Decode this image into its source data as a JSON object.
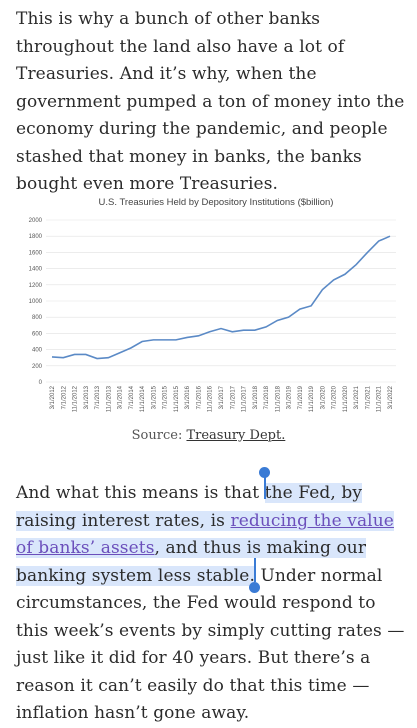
{
  "article": {
    "paragraph1": "This is why a bunch of other banks throughout the land also have a lot of Treasuries. And it’s why, when the government pumped a ton of money into the economy during the pandemic, and people stashed that money in banks, the banks bought even more Treasuries.",
    "source_prefix": "Source: ",
    "source_link": "Treasury Dept.",
    "p2_pre": "And what this means is that ",
    "p2_hl1": "the Fed, by raising interest rates, is ",
    "p2_link": "reducing the value of banks’ assets",
    "p2_hl2": ", and thus is making our banking system less stable",
    "p2_dot": ".",
    "p2_rest": " Under normal circumstances, the Fed would respond to this week’s events by simply cutting rates — just like it did for 40 years. But there’s a reason it can’t easily do that this time — inflation hasn’t gone away."
  },
  "colors": {
    "line": "#5b8ac6",
    "selection": "#d9e6fb",
    "link": "#6b4fbb",
    "handle": "#3a7bd5"
  },
  "chart_data": {
    "type": "line",
    "title": "U.S. Treasuries Held by Depository Institutions ($billion)",
    "ylim": [
      0,
      2000
    ],
    "yticks": [
      0,
      200,
      400,
      600,
      800,
      1000,
      1200,
      1400,
      1600,
      1800,
      2000
    ],
    "grid": true,
    "categories": [
      "3/1/2012",
      "7/1/2012",
      "11/1/2012",
      "3/1/2013",
      "7/1/2013",
      "11/1/2013",
      "3/1/2014",
      "7/1/2014",
      "11/1/2014",
      "3/1/2015",
      "7/1/2015",
      "11/1/2015",
      "3/1/2016",
      "7/1/2016",
      "11/1/2016",
      "3/1/2017",
      "7/1/2017",
      "11/1/2017",
      "3/1/2018",
      "7/1/2018",
      "11/1/2018",
      "3/1/2019",
      "7/1/2019",
      "11/1/2019",
      "3/1/2020",
      "7/1/2020",
      "11/1/2020",
      "3/1/2021",
      "7/1/2021",
      "11/1/2021",
      "3/1/2022"
    ],
    "values": [
      310,
      300,
      340,
      340,
      290,
      300,
      360,
      420,
      500,
      520,
      520,
      520,
      550,
      570,
      620,
      660,
      620,
      640,
      640,
      680,
      760,
      800,
      900,
      940,
      1140,
      1260,
      1330,
      1450,
      1600,
      1740,
      1800
    ]
  }
}
